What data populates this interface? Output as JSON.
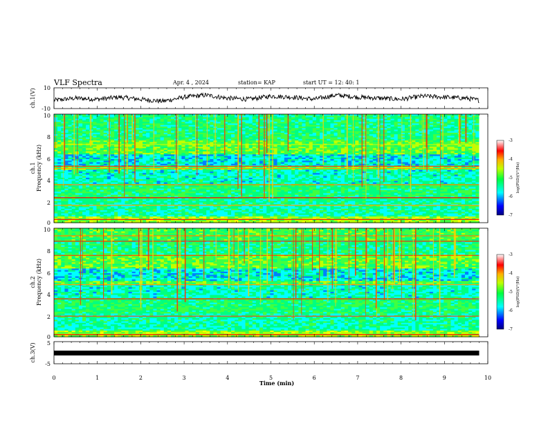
{
  "header": {
    "title": "VLF Spectra",
    "date": "Apr. 4 , 2024",
    "station": "station= KAP",
    "start": "start UT = 12: 40: 1"
  },
  "chart_data": [
    {
      "type": "line",
      "panel": "waveform-ch1",
      "ylabel": "ch.1(V)",
      "ylim": [
        -10,
        10
      ],
      "yticks": [
        "10",
        "-10"
      ],
      "xlim": [
        0,
        10
      ],
      "series": [
        {
          "x": [
            0,
            0.5,
            1,
            1.5,
            2,
            2.5,
            3,
            3.5,
            4,
            4.5,
            5,
            5.5,
            6,
            6.5,
            7,
            7.5,
            8,
            8.5,
            9,
            9.5,
            9.8
          ],
          "values": [
            -2,
            0,
            -1,
            1,
            -1,
            -3,
            1,
            3,
            0,
            -1,
            2,
            1,
            -1,
            3,
            1,
            0,
            -1,
            2,
            1,
            0,
            -2
          ]
        }
      ]
    },
    {
      "type": "heatmap",
      "panel": "spectrogram-ch1",
      "ylabel": "ch.1",
      "ylabel2": "Frequency (kHz)",
      "ylim": [
        0,
        10
      ],
      "yticks": [
        "0",
        "2",
        "4",
        "6",
        "8",
        "10"
      ],
      "xlim": [
        0,
        10
      ],
      "colorbar": {
        "label": "log(PSD)(V²/Hz)",
        "range": [
          -7,
          -3
        ],
        "ticks": [
          "-7",
          "-6",
          "-5",
          "-4",
          "-3"
        ]
      }
    },
    {
      "type": "heatmap",
      "panel": "spectrogram-ch2",
      "ylabel": "ch.2",
      "ylabel2": "Frequency (kHz)",
      "ylim": [
        0,
        10
      ],
      "yticks": [
        "0",
        "2",
        "4",
        "6",
        "8",
        "10"
      ],
      "xlim": [
        0,
        10
      ],
      "colorbar": {
        "label": "log(PSD)(V²/Hz)",
        "range": [
          -7,
          -3
        ],
        "ticks": [
          "-7",
          "-6",
          "-5",
          "-4",
          "-3"
        ]
      }
    },
    {
      "type": "line",
      "panel": "waveform-ch3",
      "ylabel": "ch.3(V)",
      "ylim": [
        -5,
        5
      ],
      "yticks": [
        "5",
        "-5"
      ],
      "xlim": [
        0,
        10
      ],
      "series": [
        {
          "x": [
            0,
            9.8
          ],
          "values": [
            0,
            0
          ]
        }
      ]
    }
  ],
  "x_axis": {
    "label": "Time (min)",
    "ticks": [
      "0",
      "1",
      "2",
      "3",
      "4",
      "5",
      "6",
      "7",
      "8",
      "9",
      "10"
    ]
  },
  "colors": {
    "cmap": [
      "#00008b",
      "#0000ff",
      "#00c0ff",
      "#00ffff",
      "#40ff80",
      "#80ff00",
      "#ffff00",
      "#ff8000",
      "#ff0000",
      "#ffffff"
    ]
  }
}
